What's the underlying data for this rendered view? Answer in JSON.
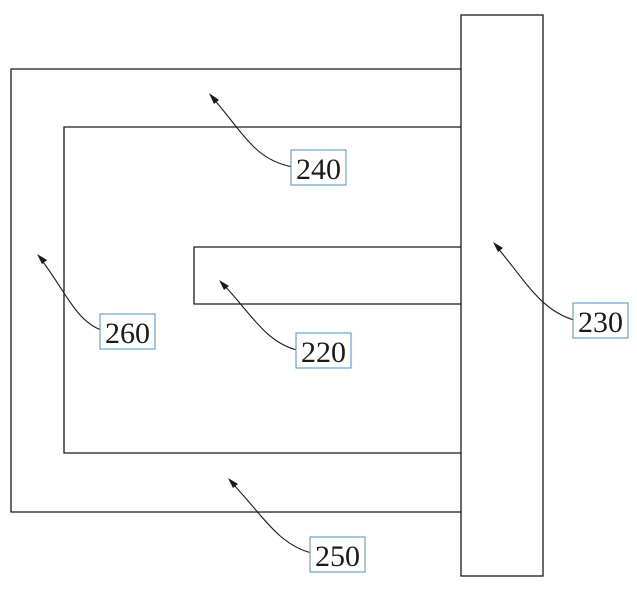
{
  "colors": {
    "line": "#1a1a1a",
    "label_border": "#4a90c8",
    "background": "#ffffff"
  },
  "labels": {
    "l240": "240",
    "l220": "220",
    "l260": "260",
    "l230": "230",
    "l250": "250"
  }
}
